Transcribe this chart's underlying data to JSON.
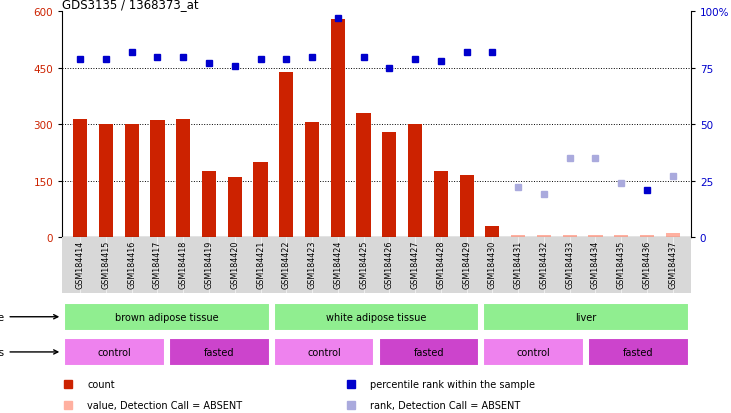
{
  "title": "GDS3135 / 1368373_at",
  "samples": [
    "GSM184414",
    "GSM184415",
    "GSM184416",
    "GSM184417",
    "GSM184418",
    "GSM184419",
    "GSM184420",
    "GSM184421",
    "GSM184422",
    "GSM184423",
    "GSM184424",
    "GSM184425",
    "GSM184426",
    "GSM184427",
    "GSM184428",
    "GSM184429",
    "GSM184430",
    "GSM184431",
    "GSM184432",
    "GSM184433",
    "GSM184434",
    "GSM184435",
    "GSM184436",
    "GSM184437"
  ],
  "count_values": [
    315,
    300,
    300,
    310,
    315,
    175,
    160,
    200,
    440,
    305,
    580,
    330,
    280,
    300,
    175,
    165,
    30,
    5,
    5,
    5,
    5,
    5,
    5,
    12
  ],
  "count_absent": [
    false,
    false,
    false,
    false,
    false,
    false,
    false,
    false,
    false,
    false,
    false,
    false,
    false,
    false,
    false,
    false,
    false,
    true,
    true,
    true,
    true,
    true,
    true,
    true
  ],
  "rank_values": [
    79,
    79,
    82,
    80,
    80,
    77,
    76,
    79,
    79,
    80,
    97,
    80,
    75,
    79,
    78,
    82,
    82,
    22,
    19,
    35,
    35,
    24,
    21,
    27
  ],
  "rank_absent": [
    false,
    false,
    false,
    false,
    false,
    false,
    false,
    false,
    false,
    false,
    false,
    false,
    false,
    false,
    false,
    false,
    false,
    true,
    true,
    true,
    true,
    true,
    false,
    true
  ],
  "tissue_groups": [
    {
      "label": "brown adipose tissue",
      "start": 0,
      "end": 8
    },
    {
      "label": "white adipose tissue",
      "start": 8,
      "end": 16
    },
    {
      "label": "liver",
      "start": 16,
      "end": 24
    }
  ],
  "stress_groups": [
    {
      "label": "control",
      "start": 0,
      "end": 4,
      "odd": true
    },
    {
      "label": "fasted",
      "start": 4,
      "end": 8,
      "odd": false
    },
    {
      "label": "control",
      "start": 8,
      "end": 12,
      "odd": true
    },
    {
      "label": "fasted",
      "start": 12,
      "end": 16,
      "odd": false
    },
    {
      "label": "control",
      "start": 16,
      "end": 20,
      "odd": true
    },
    {
      "label": "fasted",
      "start": 20,
      "end": 24,
      "odd": false
    }
  ],
  "ylim_left": [
    0,
    600
  ],
  "ylim_right": [
    0,
    100
  ],
  "yticks_left": [
    0,
    150,
    300,
    450,
    600
  ],
  "yticks_right": [
    0,
    25,
    50,
    75,
    100
  ],
  "bar_color": "#CC2200",
  "bar_absent_color": "#FFB0A0",
  "dot_color": "#0000CC",
  "dot_absent_color": "#AAAADD",
  "tissue_color": "#90EE90",
  "stress_color_odd": "#EE82EE",
  "stress_color_even": "#CC44CC",
  "xtick_bg": "#D8D8D8"
}
